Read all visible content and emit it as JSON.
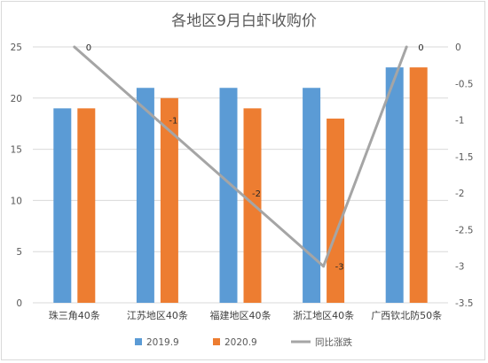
{
  "chart_data": {
    "type": "bar",
    "title": "各地区9月白虾收购价",
    "categories": [
      "珠三角40条",
      "江苏地区40条",
      "福建地区40条",
      "浙江地区40条",
      "广西钦北防50条"
    ],
    "series": [
      {
        "name": "2019.9",
        "type": "bar",
        "axis": "left",
        "color": "#5b9bd5",
        "values": [
          19,
          21,
          21,
          21,
          23
        ]
      },
      {
        "name": "2020.9",
        "type": "bar",
        "axis": "left",
        "color": "#ed7d31",
        "values": [
          19,
          20,
          19,
          18,
          23
        ]
      },
      {
        "name": "同比涨跌",
        "type": "line",
        "axis": "right",
        "color": "#a5a5a5",
        "values": [
          0,
          -1,
          -2,
          -3,
          0
        ],
        "data_labels": [
          "0",
          "-1",
          "-2",
          "-3",
          "0"
        ]
      }
    ],
    "y_left": {
      "range": [
        0,
        25
      ],
      "ticks": [
        "0",
        "5",
        "10",
        "15",
        "20",
        "25"
      ]
    },
    "y_right": {
      "range": [
        -3.5,
        0
      ],
      "ticks": [
        "0",
        "-0.5",
        "-1",
        "-1.5",
        "-2",
        "-2.5",
        "-3",
        "-3.5"
      ]
    },
    "grid": true,
    "legend": "bottom"
  }
}
